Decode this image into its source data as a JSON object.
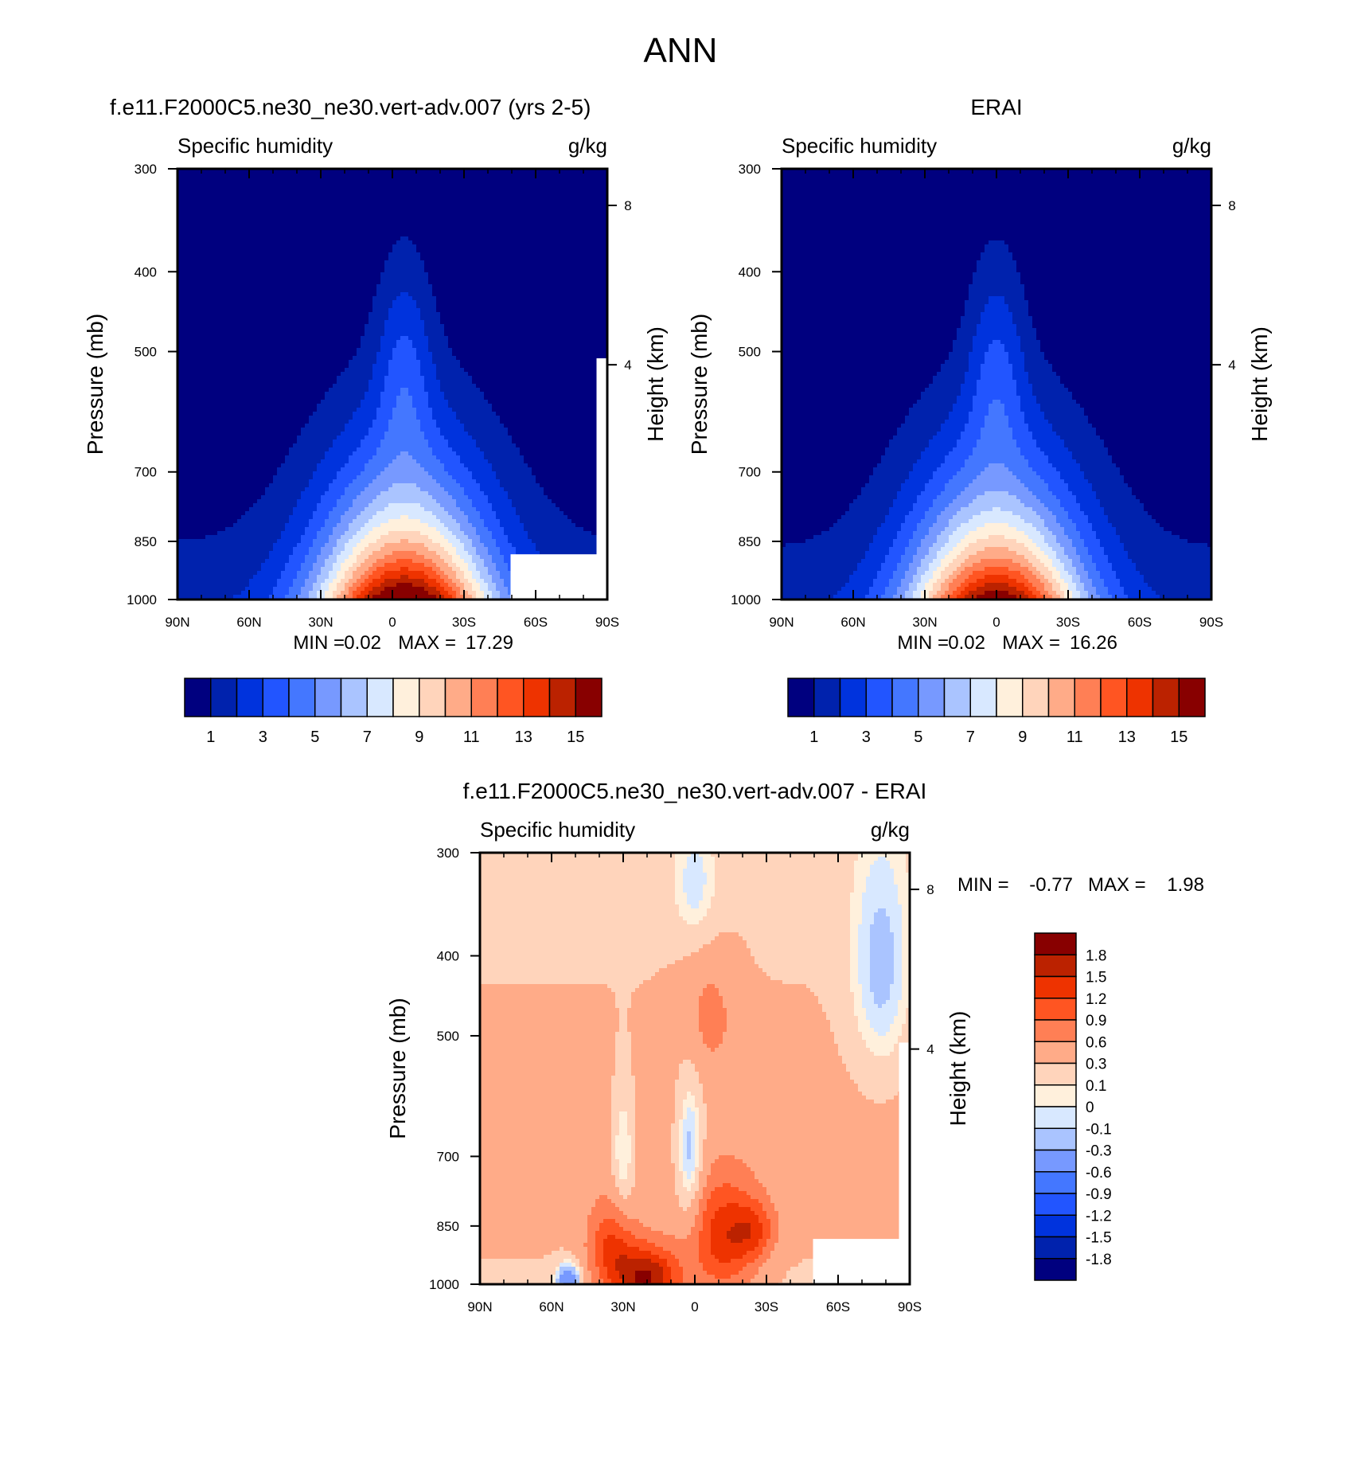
{
  "page": {
    "title": "ANN"
  },
  "chart_data": [
    {
      "type": "heatmap",
      "id": "model",
      "title": "f.e11.F2000C5.ne30_ne30.vert-adv.007 (yrs 2-5)",
      "left_label": "Specific humidity",
      "right_label": "g/kg",
      "xlabel": "",
      "ylabel": "Pressure (mb)",
      "y2label": "Height (km)",
      "x_ticks": [
        "90N",
        "60N",
        "30N",
        "0",
        "30S",
        "60S",
        "90S"
      ],
      "y_ticks": [
        "300",
        "400",
        "500",
        "700",
        "850",
        "1000"
      ],
      "y2_ticks": [
        "8",
        "4"
      ],
      "stats": {
        "min_label": "MIN =",
        "min": "0.02",
        "max_label": "MAX =",
        "max": "17.29"
      },
      "peak_lat": -5,
      "peak_value": 17.29,
      "colorbar": {
        "orientation": "horizontal",
        "colors": [
          "#00007f",
          "#0022ad",
          "#0033dd",
          "#2255ff",
          "#4477ff",
          "#7799ff",
          "#aac4ff",
          "#d8e8ff",
          "#fff0dc",
          "#ffd4bb",
          "#ffab88",
          "#ff7f55",
          "#ff5522",
          "#ee3300",
          "#bb2200",
          "#880000"
        ],
        "labels": [
          "1",
          "3",
          "5",
          "7",
          "9",
          "11",
          "13",
          "15"
        ]
      }
    },
    {
      "type": "heatmap",
      "id": "obs",
      "title": "ERAI",
      "left_label": "Specific humidity",
      "right_label": "g/kg",
      "xlabel": "",
      "ylabel": "Pressure (mb)",
      "y2label": "Height (km)",
      "x_ticks": [
        "90N",
        "60N",
        "30N",
        "0",
        "30S",
        "60S",
        "90S"
      ],
      "y_ticks": [
        "300",
        "400",
        "500",
        "700",
        "850",
        "1000"
      ],
      "y2_ticks": [
        "8",
        "4"
      ],
      "stats": {
        "min_label": "MIN =",
        "min": "0.02",
        "max_label": "MAX =",
        "max": "16.26"
      },
      "peak_lat": 0,
      "peak_value": 16.26,
      "colorbar": {
        "orientation": "horizontal",
        "colors": [
          "#00007f",
          "#0022ad",
          "#0033dd",
          "#2255ff",
          "#4477ff",
          "#7799ff",
          "#aac4ff",
          "#d8e8ff",
          "#fff0dc",
          "#ffd4bb",
          "#ffab88",
          "#ff7f55",
          "#ff5522",
          "#ee3300",
          "#bb2200",
          "#880000"
        ],
        "labels": [
          "1",
          "3",
          "5",
          "7",
          "9",
          "11",
          "13",
          "15"
        ]
      }
    },
    {
      "type": "heatmap",
      "id": "diff",
      "title": "f.e11.F2000C5.ne30_ne30.vert-adv.007 - ERAI",
      "left_label": "Specific humidity",
      "right_label": "g/kg",
      "xlabel": "",
      "ylabel": "Pressure (mb)",
      "y2label": "Height (km)",
      "x_ticks": [
        "90N",
        "60N",
        "30N",
        "0",
        "30S",
        "60S",
        "90S"
      ],
      "y_ticks": [
        "300",
        "400",
        "500",
        "700",
        "850",
        "1000"
      ],
      "y2_ticks": [
        "8",
        "4"
      ],
      "stats": {
        "min_label": "MIN =",
        "min": "-0.77",
        "max_label": "MAX =",
        "max": "1.98"
      },
      "colorbar": {
        "orientation": "vertical",
        "colors": [
          "#880000",
          "#bb2200",
          "#ee3300",
          "#ff5522",
          "#ff7f55",
          "#ffab88",
          "#ffd4bb",
          "#fff0dc",
          "#d8e8ff",
          "#aac4ff",
          "#7799ff",
          "#4477ff",
          "#2255ff",
          "#0033dd",
          "#0022ad",
          "#00007f"
        ],
        "labels": [
          "1.8",
          "1.5",
          "1.2",
          "0.9",
          "0.6",
          "0.3",
          "0.1",
          "0",
          "-0.1",
          "-0.3",
          "-0.6",
          "-0.9",
          "-1.2",
          "-1.5",
          "-1.8"
        ]
      }
    }
  ]
}
